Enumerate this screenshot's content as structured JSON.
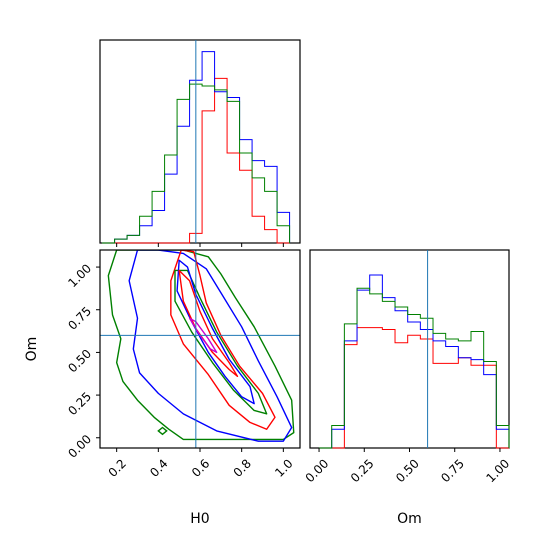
{
  "chart_data": {
    "type": "corner",
    "parameters": [
      "H0",
      "Om"
    ],
    "truths": {
      "H0": 0.58,
      "Om": 0.6
    },
    "colors": {
      "red": "#ff0000",
      "blue": "#0000ff",
      "green": "#008000",
      "truth": "#1f77b4"
    },
    "panels": {
      "H0_hist": {
        "xlim": [
          0.12,
          1.08
        ],
        "tick_marks": [
          0.2,
          0.4,
          0.6,
          0.8,
          1.0
        ],
        "bin_edges": [
          0.13,
          0.19,
          0.25,
          0.31,
          0.37,
          0.43,
          0.49,
          0.55,
          0.61,
          0.67,
          0.73,
          0.79,
          0.85,
          0.91,
          0.97,
          1.03
        ],
        "series": [
          {
            "color": "red",
            "counts": [
              0,
              0,
              0,
              0,
              0,
              0,
              0,
              5,
              69,
              86,
              47,
              38,
              14,
              7,
              0
            ]
          },
          {
            "color": "blue",
            "counts": [
              0,
              2,
              4,
              9,
              17,
              36,
              61,
              85,
              100,
              79,
              76,
              54,
              43,
              40,
              16
            ]
          },
          {
            "color": "green",
            "counts": [
              0,
              2,
              4,
              14,
              27,
              46,
              75,
              83,
              82,
              80,
              74,
              47,
              34,
              27,
              9
            ]
          }
        ]
      },
      "Om_hist": {
        "xlim": [
          -0.05,
          1.05
        ],
        "ticks": [
          "0.00",
          "0.25",
          "0.50",
          "0.75",
          "1.00"
        ],
        "tick_values": [
          0.0,
          0.25,
          0.5,
          0.75,
          1.0
        ],
        "xlabel": "Om",
        "bin_edges": [
          0.0,
          0.07,
          0.14,
          0.21,
          0.28,
          0.35,
          0.42,
          0.49,
          0.56,
          0.63,
          0.7,
          0.77,
          0.84,
          0.91,
          0.98,
          1.05
        ],
        "series": [
          {
            "color": "red",
            "counts": [
              0,
              0,
              0.55,
              0.64,
              0.64,
              0.63,
              0.56,
              0.6,
              0.58,
              0.45,
              0.45,
              0.48,
              0.44,
              0.44,
              0
            ]
          },
          {
            "color": "blue",
            "counts": [
              0,
              0.1,
              0.57,
              0.84,
              0.92,
              0.8,
              0.73,
              0.67,
              0.63,
              0.57,
              0.54,
              0.48,
              0.47,
              0.39,
              0.1
            ]
          },
          {
            "color": "green",
            "counts": [
              0,
              0.12,
              0.66,
              0.85,
              0.82,
              0.78,
              0.75,
              0.71,
              0.69,
              0.61,
              0.58,
              0.57,
              0.62,
              0.46,
              0.12
            ]
          }
        ]
      },
      "H0_Om_2d": {
        "xlim": [
          0.12,
          1.08
        ],
        "ylim": [
          -0.06,
          1.1
        ],
        "xticks": [
          "0.2",
          "0.4",
          "0.6",
          "0.8",
          "1.0"
        ],
        "xtick_values": [
          0.2,
          0.4,
          0.6,
          0.8,
          1.0
        ],
        "yticks": [
          "0.00",
          "0.25",
          "0.50",
          "0.75",
          "1.00"
        ],
        "ytick_values": [
          0.0,
          0.25,
          0.5,
          0.75,
          1.0
        ],
        "xlabel": "H0",
        "ylabel": "Om",
        "contours": [
          {
            "color": "green",
            "points": [
              [
                0.2,
                1.1
              ],
              [
                0.16,
                0.95
              ],
              [
                0.18,
                0.72
              ],
              [
                0.22,
                0.58
              ],
              [
                0.2,
                0.44
              ],
              [
                0.23,
                0.33
              ],
              [
                0.3,
                0.22
              ],
              [
                0.38,
                0.12
              ],
              [
                0.45,
                0.05
              ],
              [
                0.52,
                -0.01
              ],
              [
                0.68,
                -0.01
              ],
              [
                0.86,
                -0.01
              ],
              [
                1.0,
                -0.01
              ],
              [
                1.05,
                0.03
              ],
              [
                1.04,
                0.22
              ],
              [
                0.96,
                0.42
              ],
              [
                0.86,
                0.65
              ],
              [
                0.77,
                0.82
              ],
              [
                0.7,
                0.96
              ],
              [
                0.64,
                1.06
              ],
              [
                0.52,
                1.1
              ]
            ]
          },
          {
            "color": "blue",
            "points": [
              [
                0.3,
                1.1
              ],
              [
                0.26,
                0.92
              ],
              [
                0.3,
                0.7
              ],
              [
                0.28,
                0.52
              ],
              [
                0.31,
                0.38
              ],
              [
                0.4,
                0.26
              ],
              [
                0.52,
                0.14
              ],
              [
                0.68,
                0.04
              ],
              [
                0.88,
                -0.02
              ],
              [
                1.0,
                -0.02
              ],
              [
                1.04,
                0.06
              ],
              [
                0.97,
                0.24
              ],
              [
                0.88,
                0.45
              ],
              [
                0.8,
                0.65
              ],
              [
                0.7,
                0.85
              ],
              [
                0.63,
                0.99
              ],
              [
                0.52,
                1.08
              ],
              [
                0.4,
                1.1
              ]
            ]
          },
          {
            "color": "red",
            "points": [
              [
                0.51,
                1.1
              ],
              [
                0.46,
                0.92
              ],
              [
                0.46,
                0.72
              ],
              [
                0.52,
                0.55
              ],
              [
                0.64,
                0.37
              ],
              [
                0.74,
                0.19
              ],
              [
                0.84,
                0.09
              ],
              [
                0.92,
                0.05
              ],
              [
                0.96,
                0.12
              ],
              [
                0.9,
                0.26
              ],
              [
                0.79,
                0.42
              ],
              [
                0.7,
                0.6
              ],
              [
                0.63,
                0.79
              ],
              [
                0.6,
                0.95
              ],
              [
                0.57,
                1.09
              ]
            ]
          },
          {
            "color": "green",
            "points": [
              [
                0.48,
                0.98
              ],
              [
                0.48,
                0.8
              ],
              [
                0.56,
                0.62
              ],
              [
                0.66,
                0.44
              ],
              [
                0.76,
                0.28
              ],
              [
                0.86,
                0.16
              ],
              [
                0.92,
                0.14
              ],
              [
                0.88,
                0.26
              ],
              [
                0.78,
                0.42
              ],
              [
                0.68,
                0.62
              ],
              [
                0.6,
                0.82
              ],
              [
                0.54,
                0.98
              ]
            ]
          },
          {
            "color": "blue",
            "points": [
              [
                0.5,
                1.04
              ],
              [
                0.49,
                0.86
              ],
              [
                0.56,
                0.68
              ],
              [
                0.64,
                0.5
              ],
              [
                0.72,
                0.36
              ],
              [
                0.8,
                0.24
              ],
              [
                0.86,
                0.2
              ],
              [
                0.84,
                0.3
              ],
              [
                0.74,
                0.46
              ],
              [
                0.66,
                0.64
              ],
              [
                0.58,
                0.84
              ],
              [
                0.54,
                1.0
              ]
            ]
          },
          {
            "color": "red",
            "points": [
              [
                0.5,
                0.98
              ],
              [
                0.52,
                0.8
              ],
              [
                0.58,
                0.64
              ],
              [
                0.66,
                0.5
              ],
              [
                0.74,
                0.4
              ],
              [
                0.78,
                0.36
              ],
              [
                0.74,
                0.44
              ],
              [
                0.66,
                0.58
              ],
              [
                0.6,
                0.74
              ],
              [
                0.55,
                0.92
              ]
            ]
          },
          {
            "color": "magenta",
            "points": [
              [
                0.55,
                0.7
              ],
              [
                0.6,
                0.6
              ],
              [
                0.65,
                0.52
              ],
              [
                0.68,
                0.5
              ],
              [
                0.64,
                0.58
              ],
              [
                0.58,
                0.68
              ]
            ]
          }
        ]
      }
    }
  }
}
